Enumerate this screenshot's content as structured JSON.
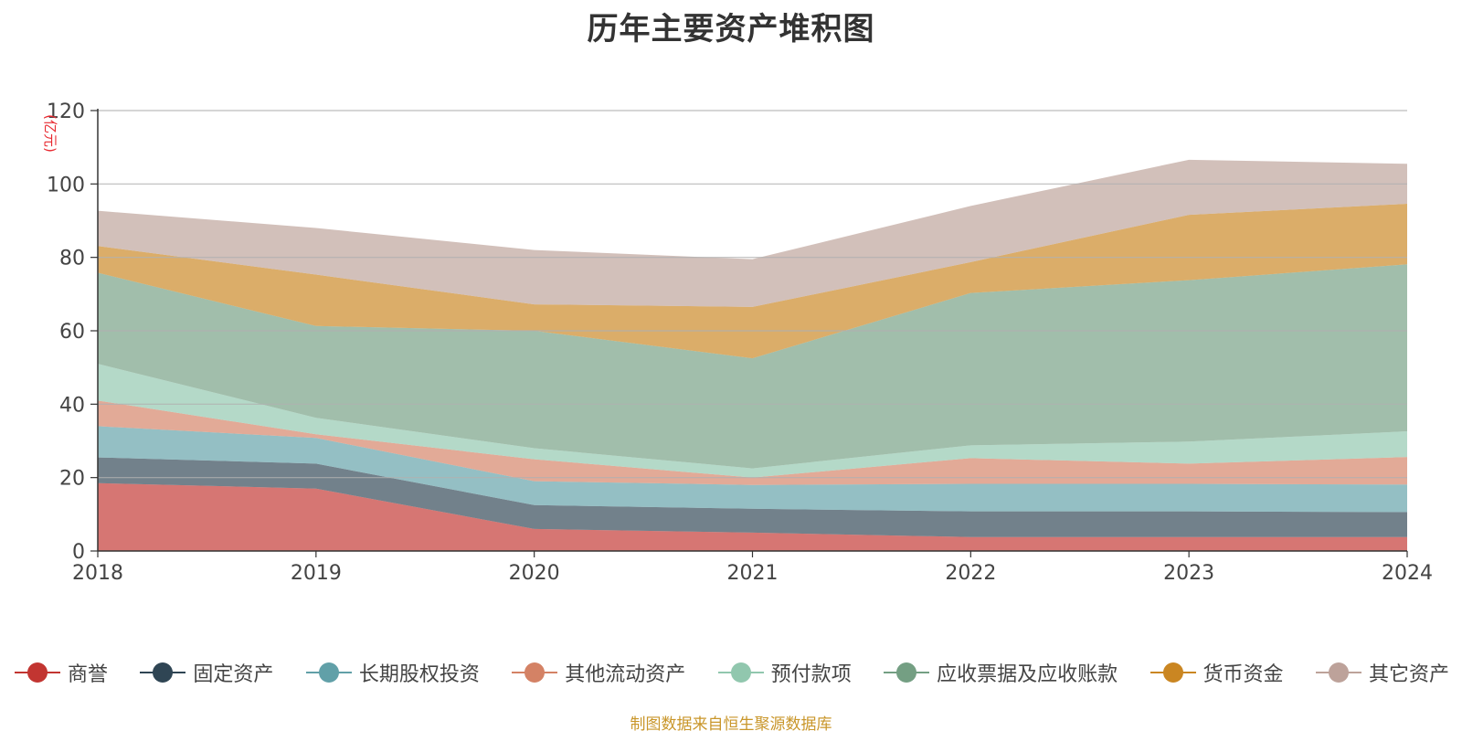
{
  "chart_data": {
    "type": "area",
    "stacked": true,
    "title": "历年主要资产堆积图",
    "ylabel": "(亿元)",
    "xlabel": "",
    "categories": [
      "2018",
      "2019",
      "2020",
      "2021",
      "2022",
      "2023",
      "2024"
    ],
    "ylim": [
      0,
      120
    ],
    "yticks": [
      0,
      20,
      40,
      60,
      80,
      100,
      120
    ],
    "grid": true,
    "legend_position": "bottom",
    "series": [
      {
        "name": "商誉",
        "color": "#c23531",
        "values": [
          18.5,
          17.0,
          6.0,
          5.0,
          3.8,
          3.8,
          3.8
        ]
      },
      {
        "name": "固定资产",
        "color": "#2f4554",
        "values": [
          7.0,
          6.8,
          6.5,
          6.5,
          7.0,
          7.0,
          6.8
        ]
      },
      {
        "name": "长期股权投资",
        "color": "#61a0a8",
        "values": [
          8.5,
          7.0,
          6.5,
          6.5,
          7.5,
          7.5,
          7.5
        ]
      },
      {
        "name": "其他流动资产",
        "color": "#d48265",
        "values": [
          7.0,
          1.0,
          6.0,
          2.0,
          7.0,
          5.5,
          7.5
        ]
      },
      {
        "name": "预付款项",
        "color": "#91c7ae",
        "values": [
          10.0,
          4.5,
          3.0,
          2.5,
          3.5,
          6.0,
          7.0
        ]
      },
      {
        "name": "应收票据及应收账款",
        "color": "#749f83",
        "values": [
          24.8,
          25.0,
          32.0,
          30.0,
          41.5,
          44.0,
          45.5
        ]
      },
      {
        "name": "货币资金",
        "color": "#ca8622",
        "values": [
          7.3,
          14.0,
          7.2,
          14.0,
          8.4,
          17.8,
          16.5
        ]
      },
      {
        "name": "其它资产",
        "color": "#bda29a",
        "values": [
          9.6,
          12.7,
          14.8,
          13.0,
          15.3,
          15.0,
          10.9
        ]
      }
    ]
  },
  "source_note": "制图数据来自恒生聚源数据库"
}
